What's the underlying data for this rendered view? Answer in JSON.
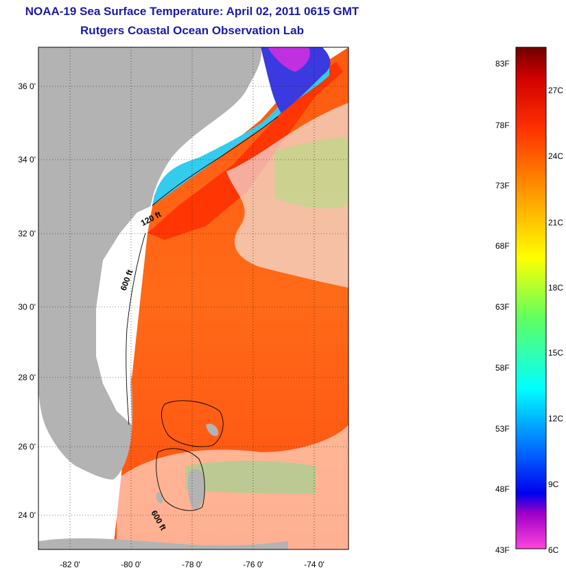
{
  "header": {
    "title": "NOAA-19 Sea Surface Temperature:  April 02, 2011 0615 GMT",
    "subtitle": "Rutgers Coastal Ocean Observation Lab"
  },
  "map": {
    "lat_labels": [
      "36 0'",
      "34 0'",
      "32 0'",
      "30 0'",
      "28 0'",
      "26 0'",
      "24 0'"
    ],
    "lon_labels": [
      "-82 0'",
      "-80 0'",
      "-78 0'",
      "-76 0'",
      "-74 0'"
    ],
    "isobath_labels": [
      "120 ft",
      "600 ft",
      "600 ft"
    ]
  },
  "colorbar": {
    "f_labels": [
      "83F",
      "78F",
      "73F",
      "68F",
      "63F",
      "58F",
      "53F",
      "48F",
      "43F"
    ],
    "c_labels": [
      "27C",
      "24C",
      "21C",
      "18C",
      "15C",
      "12C",
      "9C",
      "6C"
    ],
    "colors": [
      "#7a0000",
      "#d40000",
      "#ff3c00",
      "#ff9a00",
      "#ffff00",
      "#9aff3c",
      "#00ffff",
      "#0060ff",
      "#0000dd",
      "#ff44dd"
    ]
  }
}
